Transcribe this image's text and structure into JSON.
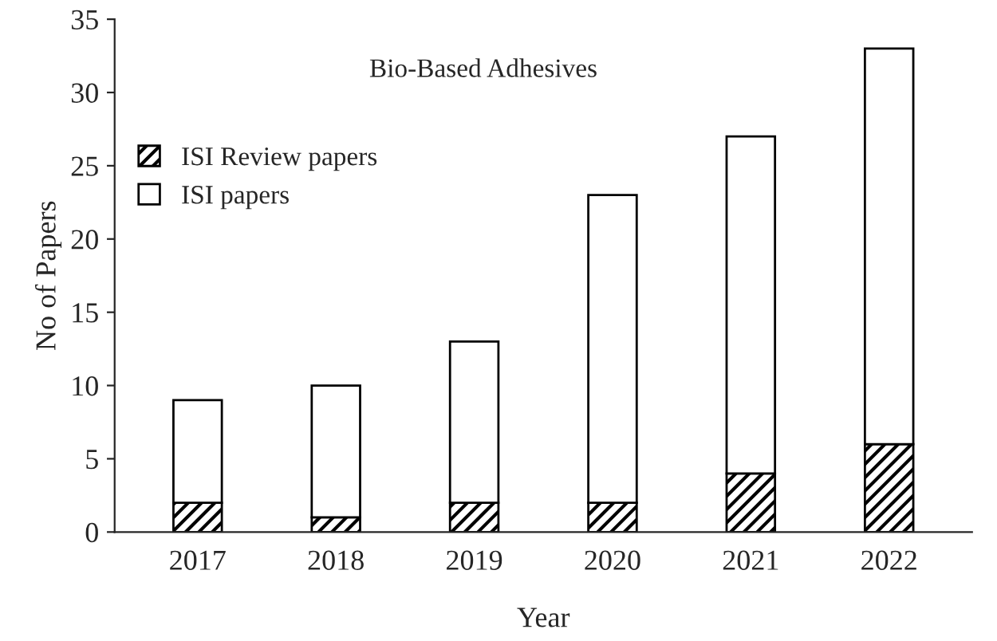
{
  "chart_data": {
    "type": "bar",
    "title": "Bio-Based Adhesives",
    "xlabel": "Year",
    "ylabel": "No of Papers",
    "categories": [
      "2017",
      "2018",
      "2019",
      "2020",
      "2021",
      "2022"
    ],
    "stacked": true,
    "series": [
      {
        "name": "ISI Review papers",
        "color": "#000000",
        "values": [
          2,
          1,
          2,
          2,
          4,
          6
        ]
      },
      {
        "name": "ISI papers",
        "color": "#ffffff",
        "values": [
          7,
          9,
          11,
          21,
          23,
          27
        ]
      }
    ],
    "ylim": [
      0,
      35
    ],
    "yticks": [
      0,
      5,
      10,
      15,
      20,
      25,
      30,
      35
    ],
    "grid": false,
    "legend": "top left"
  }
}
